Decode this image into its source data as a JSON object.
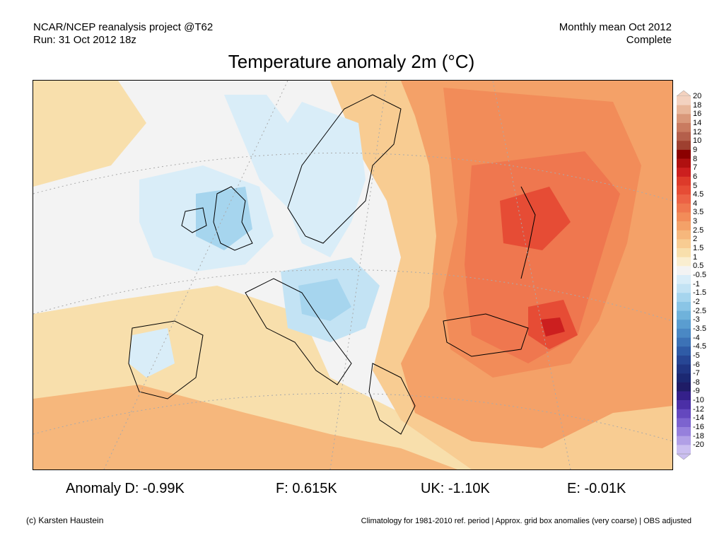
{
  "header": {
    "source": "NCAR/NCEP reanalysis project @T62",
    "run": "Run: 31 Oct 2012 18z",
    "period": "Monthly mean Oct 2012",
    "status": "Complete"
  },
  "title": "Temperature anomaly 2m (°C)",
  "colorbar": {
    "labels": [
      "20",
      "18",
      "16",
      "14",
      "12",
      "10",
      "9",
      "8",
      "7",
      "6",
      "5",
      "4.5",
      "4",
      "3.5",
      "3",
      "2.5",
      "2",
      "1.5",
      "1",
      "0.5",
      "-0.5",
      "-1",
      "-1.5",
      "-2",
      "-2.5",
      "-3",
      "-3.5",
      "-4",
      "-4.5",
      "-5",
      "-6",
      "-7",
      "-8",
      "-9",
      "-10",
      "-12",
      "-14",
      "-16",
      "-18",
      "-20"
    ],
    "colors": [
      "#f3d2c0",
      "#e8b79b",
      "#d9987a",
      "#c97b60",
      "#b45f4b",
      "#9e4030",
      "#8b0000",
      "#b01010",
      "#cc1f1f",
      "#dd3a2a",
      "#e64c35",
      "#ec6245",
      "#ef774f",
      "#f28c59",
      "#f4a168",
      "#f6b77c",
      "#f8cc92",
      "#f8dfac",
      "#faeed0",
      "#f3f3f3",
      "#d9edf8",
      "#c3e3f4",
      "#a6d5ee",
      "#8ac5e6",
      "#6fb2db",
      "#5a9dd0",
      "#4a88c4",
      "#3c72b6",
      "#2f5ba6",
      "#274694",
      "#203582",
      "#1b2872",
      "#1f1c66",
      "#34208a",
      "#4b2fa6",
      "#6448be",
      "#7c63cf",
      "#9680dc",
      "#b1a0e6",
      "#cbbff0"
    ]
  },
  "stats": {
    "d": "Anomaly D: -0.99K",
    "f": "F: 0.615K",
    "uk": "UK: -1.10K",
    "e": "E: -0.01K"
  },
  "footer": {
    "credit": "(c) Karsten Haustein",
    "note": "Climatology for 1981-2010 ref. period | Approx. grid box anomalies (very coarse) | OBS adjusted"
  }
}
